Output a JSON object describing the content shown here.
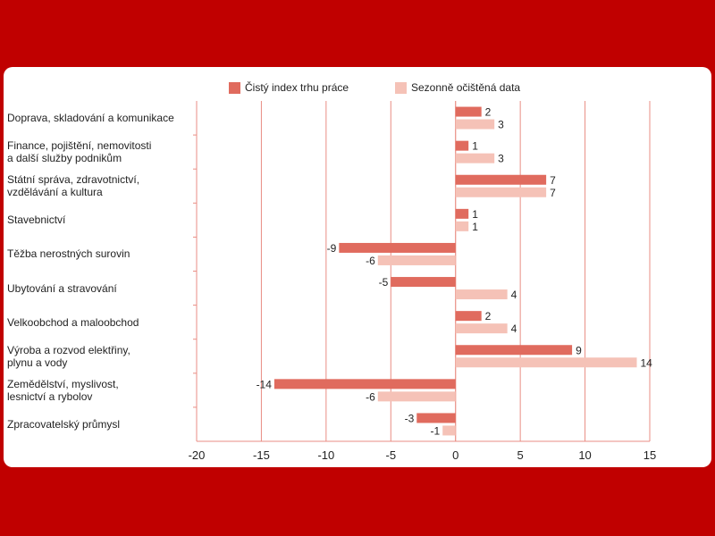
{
  "chart_data": {
    "type": "bar",
    "orientation": "horizontal",
    "title": "",
    "xlabel": "",
    "ylabel": "",
    "xlim": [
      -20,
      15
    ],
    "xticks": [
      -20,
      -15,
      -10,
      -5,
      0,
      5,
      10,
      15
    ],
    "grid": true,
    "legend_position": "top",
    "categories": [
      "Doprava, skladování a komunikace",
      "Finance, pojištění, nemovitosti\na další služby podnikům",
      "Státní správa, zdravotnictví,\nvzdělávání a kultura",
      "Stavebnictví",
      "Těžba nerostných surovin",
      "Ubytování a stravování",
      "Velkoobchod a maloobchod",
      "Výroba a rozvod elektřiny,\nplynu a vody",
      "Zemědělství, myslivost,\nlesnictví a rybolov",
      "Zpracovatelský průmysl"
    ],
    "series": [
      {
        "name": "Čistý index trhu práce",
        "color": "#e06b5e",
        "values": [
          2,
          1,
          7,
          1,
          -9,
          -5,
          2,
          9,
          -14,
          -3
        ]
      },
      {
        "name": "Sezonně očištěná data",
        "color": "#f5c2b7",
        "values": [
          3,
          3,
          7,
          1,
          -6,
          4,
          4,
          14,
          -6,
          -1
        ]
      }
    ]
  },
  "colors": {
    "background": "#c00000",
    "grid": "#e98d84",
    "panel": "#ffffff"
  }
}
